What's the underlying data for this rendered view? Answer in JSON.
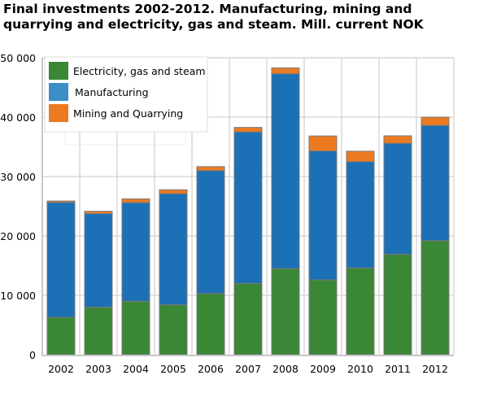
{
  "chart_data": {
    "type": "bar",
    "stacked": true,
    "title": "Final investments 2002-2012. Manufacturing, mining and quarrying and electricity, gas and steam. Mill. current NOK",
    "xlabel": "",
    "ylabel": "",
    "ylim": [
      0,
      50000
    ],
    "yticks": [
      "0",
      "10 000",
      "20 000",
      "30 000",
      "40 000",
      "50 000"
    ],
    "grid": true,
    "legend_position": "top-left",
    "categories": [
      "2002",
      "2003",
      "2004",
      "2005",
      "2006",
      "2007",
      "2008",
      "2009",
      "2010",
      "2011",
      "2012"
    ],
    "series": [
      {
        "name": "Electricity, gas and steam",
        "color": "#3a8735",
        "values": [
          6300,
          8000,
          9000,
          8400,
          10300,
          12000,
          14500,
          12600,
          14600,
          16900,
          19200
        ]
      },
      {
        "name": "Manufacturing",
        "color": "#1b70b6",
        "values": [
          19350,
          15750,
          16600,
          18700,
          20700,
          25500,
          32800,
          21700,
          17900,
          18700,
          19400
        ]
      },
      {
        "name": "Mining and Quarrying",
        "color": "#ec7a21",
        "values": [
          230,
          400,
          640,
          680,
          670,
          770,
          990,
          2530,
          1760,
          1260,
          1390
        ]
      }
    ],
    "legend_colors": [
      "#3a8735",
      "#3b8fc6",
      "#ec7a21"
    ]
  }
}
